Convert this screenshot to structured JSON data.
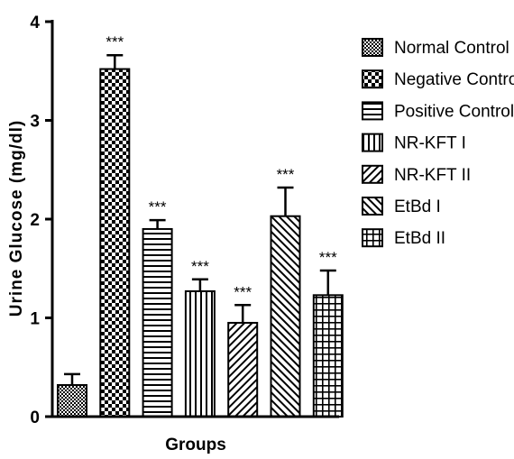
{
  "chart_data": {
    "type": "bar",
    "xlabel": "Groups",
    "ylabel": "Urine Glucose (mg/dl)",
    "ylim": [
      0,
      4
    ],
    "yticks": [
      "0",
      "1",
      "2",
      "3",
      "4"
    ],
    "grid": false,
    "legend_position": "right",
    "series": [
      {
        "name": "Normal Control",
        "value": 0.32,
        "error": 0.11,
        "sig": "",
        "pattern": "dense-check"
      },
      {
        "name": "Negative Control",
        "value": 3.52,
        "error": 0.14,
        "sig": "***",
        "pattern": "checker"
      },
      {
        "name": "Positive Control",
        "value": 1.9,
        "error": 0.09,
        "sig": "***",
        "pattern": "horizontal"
      },
      {
        "name": "NR-KFT I",
        "value": 1.27,
        "error": 0.12,
        "sig": "***",
        "pattern": "vertical"
      },
      {
        "name": "NR-KFT II",
        "value": 0.95,
        "error": 0.18,
        "sig": "***",
        "pattern": "diag-forward"
      },
      {
        "name": "EtBd I",
        "value": 2.03,
        "error": 0.29,
        "sig": "***",
        "pattern": "diag-back"
      },
      {
        "name": "EtBd II",
        "value": 1.23,
        "error": 0.25,
        "sig": "***",
        "pattern": "grid"
      }
    ]
  }
}
